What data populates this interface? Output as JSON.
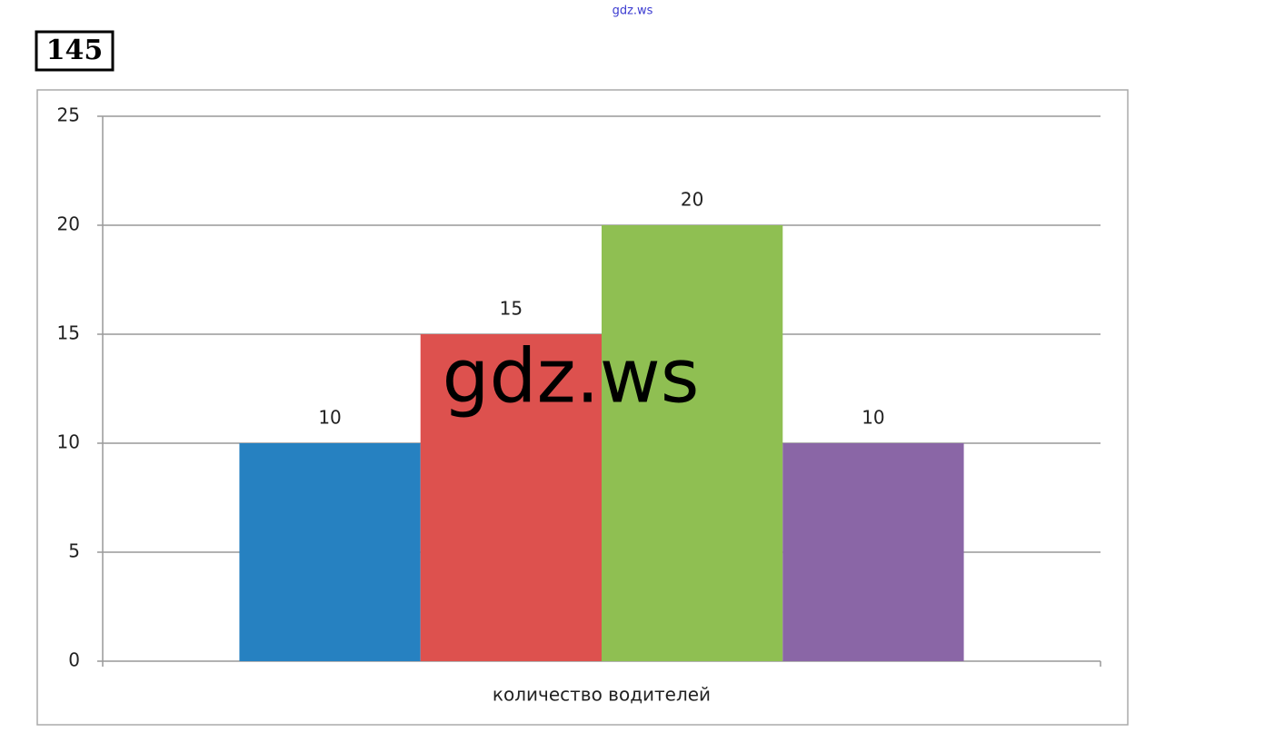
{
  "source": "gdz.ws",
  "problem_number": "145",
  "watermark": "gdz.ws",
  "chart_data": {
    "type": "bar",
    "categories": [
      "количество водителей"
    ],
    "series": [
      {
        "color": "#2681c1",
        "values": [
          10
        ]
      },
      {
        "color": "#dd514e",
        "values": [
          15
        ]
      },
      {
        "color": "#8fbf52",
        "values": [
          20
        ]
      },
      {
        "color": "#8a66a6",
        "values": [
          10
        ]
      }
    ],
    "ylim": [
      0,
      25
    ],
    "yticks": [
      0,
      5,
      10,
      15,
      20,
      25
    ],
    "grid": true
  }
}
